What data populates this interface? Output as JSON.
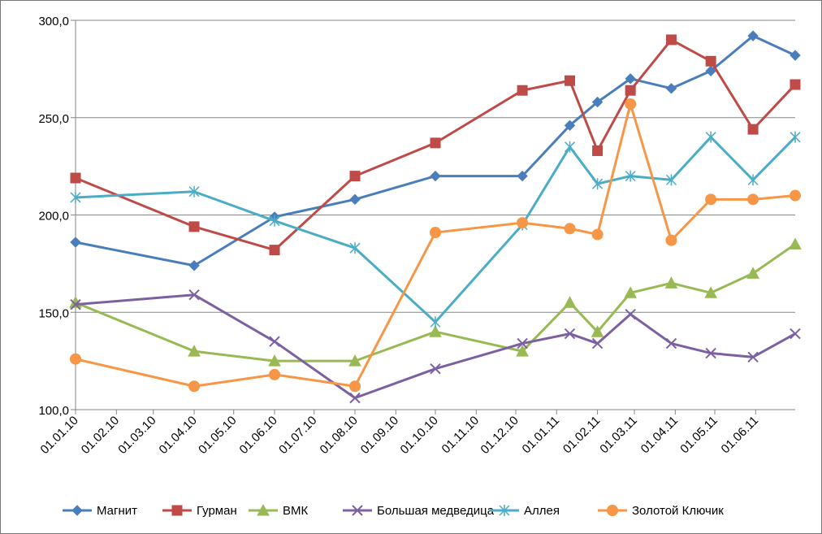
{
  "chart_data": {
    "type": "line",
    "title": "",
    "xlabel": "",
    "ylabel": "",
    "ylim": [
      100,
      300
    ],
    "yticks": [
      "100,0",
      "150,0",
      "200,0",
      "250,0",
      "300,0"
    ],
    "ytick_values": [
      100,
      150,
      200,
      250,
      300
    ],
    "xticks": [
      "01.01.10",
      "01.02.10",
      "01.03.10",
      "01.04.10",
      "01.05.10",
      "01.06.10",
      "01.07.10",
      "01.08.10",
      "01.09.10",
      "01.10.10",
      "01.11.10",
      "01.12.10",
      "01.01.11",
      "01.02.11",
      "01.03.11",
      "01.04.11",
      "01.05.11",
      "01.06.11"
    ],
    "xtick_days": [
      0,
      31,
      59,
      90,
      120,
      151,
      181,
      212,
      243,
      273,
      304,
      334,
      365,
      396,
      424,
      455,
      485,
      516
    ],
    "xlim_days": [
      0,
      546
    ],
    "grid": "horizontal",
    "legend_position": "bottom",
    "series": [
      {
        "name": "Магнит",
        "color": "#4A7EBB",
        "marker": "diamond",
        "x": [
          0,
          90,
          151,
          212,
          273,
          339,
          375,
          396,
          421,
          452,
          482,
          514,
          546
        ],
        "y": [
          186,
          174,
          199,
          208,
          220,
          220,
          246,
          258,
          270,
          265,
          274,
          292,
          282
        ]
      },
      {
        "name": "Гурман",
        "color": "#BE4B48",
        "marker": "square",
        "x": [
          0,
          90,
          151,
          212,
          273,
          339,
          375,
          396,
          421,
          452,
          482,
          514,
          546
        ],
        "y": [
          219,
          194,
          182,
          220,
          237,
          264,
          269,
          233,
          264,
          290,
          279,
          244,
          267
        ]
      },
      {
        "name": "ВМК",
        "color": "#98B954",
        "marker": "triangle",
        "x": [
          0,
          90,
          151,
          212,
          273,
          339,
          375,
          396,
          421,
          452,
          482,
          514,
          546
        ],
        "y": [
          155,
          130,
          125,
          125,
          140,
          130,
          155,
          140,
          160,
          165,
          160,
          170,
          185
        ]
      },
      {
        "name": "Большая медведица",
        "color": "#7D60A0",
        "marker": "x",
        "x": [
          0,
          90,
          151,
          212,
          273,
          339,
          375,
          396,
          421,
          452,
          482,
          514,
          546
        ],
        "y": [
          154,
          159,
          135,
          106,
          121,
          134,
          139,
          134,
          149,
          134,
          129,
          127,
          139
        ]
      },
      {
        "name": "Аллея",
        "color": "#4BACC6",
        "marker": "star",
        "x": [
          0,
          90,
          151,
          212,
          273,
          339,
          375,
          396,
          421,
          452,
          482,
          514,
          546
        ],
        "y": [
          209,
          212,
          197,
          183,
          145,
          195,
          235,
          216,
          220,
          218,
          240,
          218,
          240
        ]
      },
      {
        "name": "Золотой Ключик",
        "color": "#F79646",
        "marker": "circle",
        "x": [
          0,
          90,
          151,
          212,
          273,
          339,
          375,
          396,
          421,
          452,
          482,
          514,
          546
        ],
        "y": [
          126,
          112,
          118,
          112,
          191,
          196,
          193,
          190,
          257,
          187,
          208,
          208,
          210
        ]
      }
    ]
  }
}
